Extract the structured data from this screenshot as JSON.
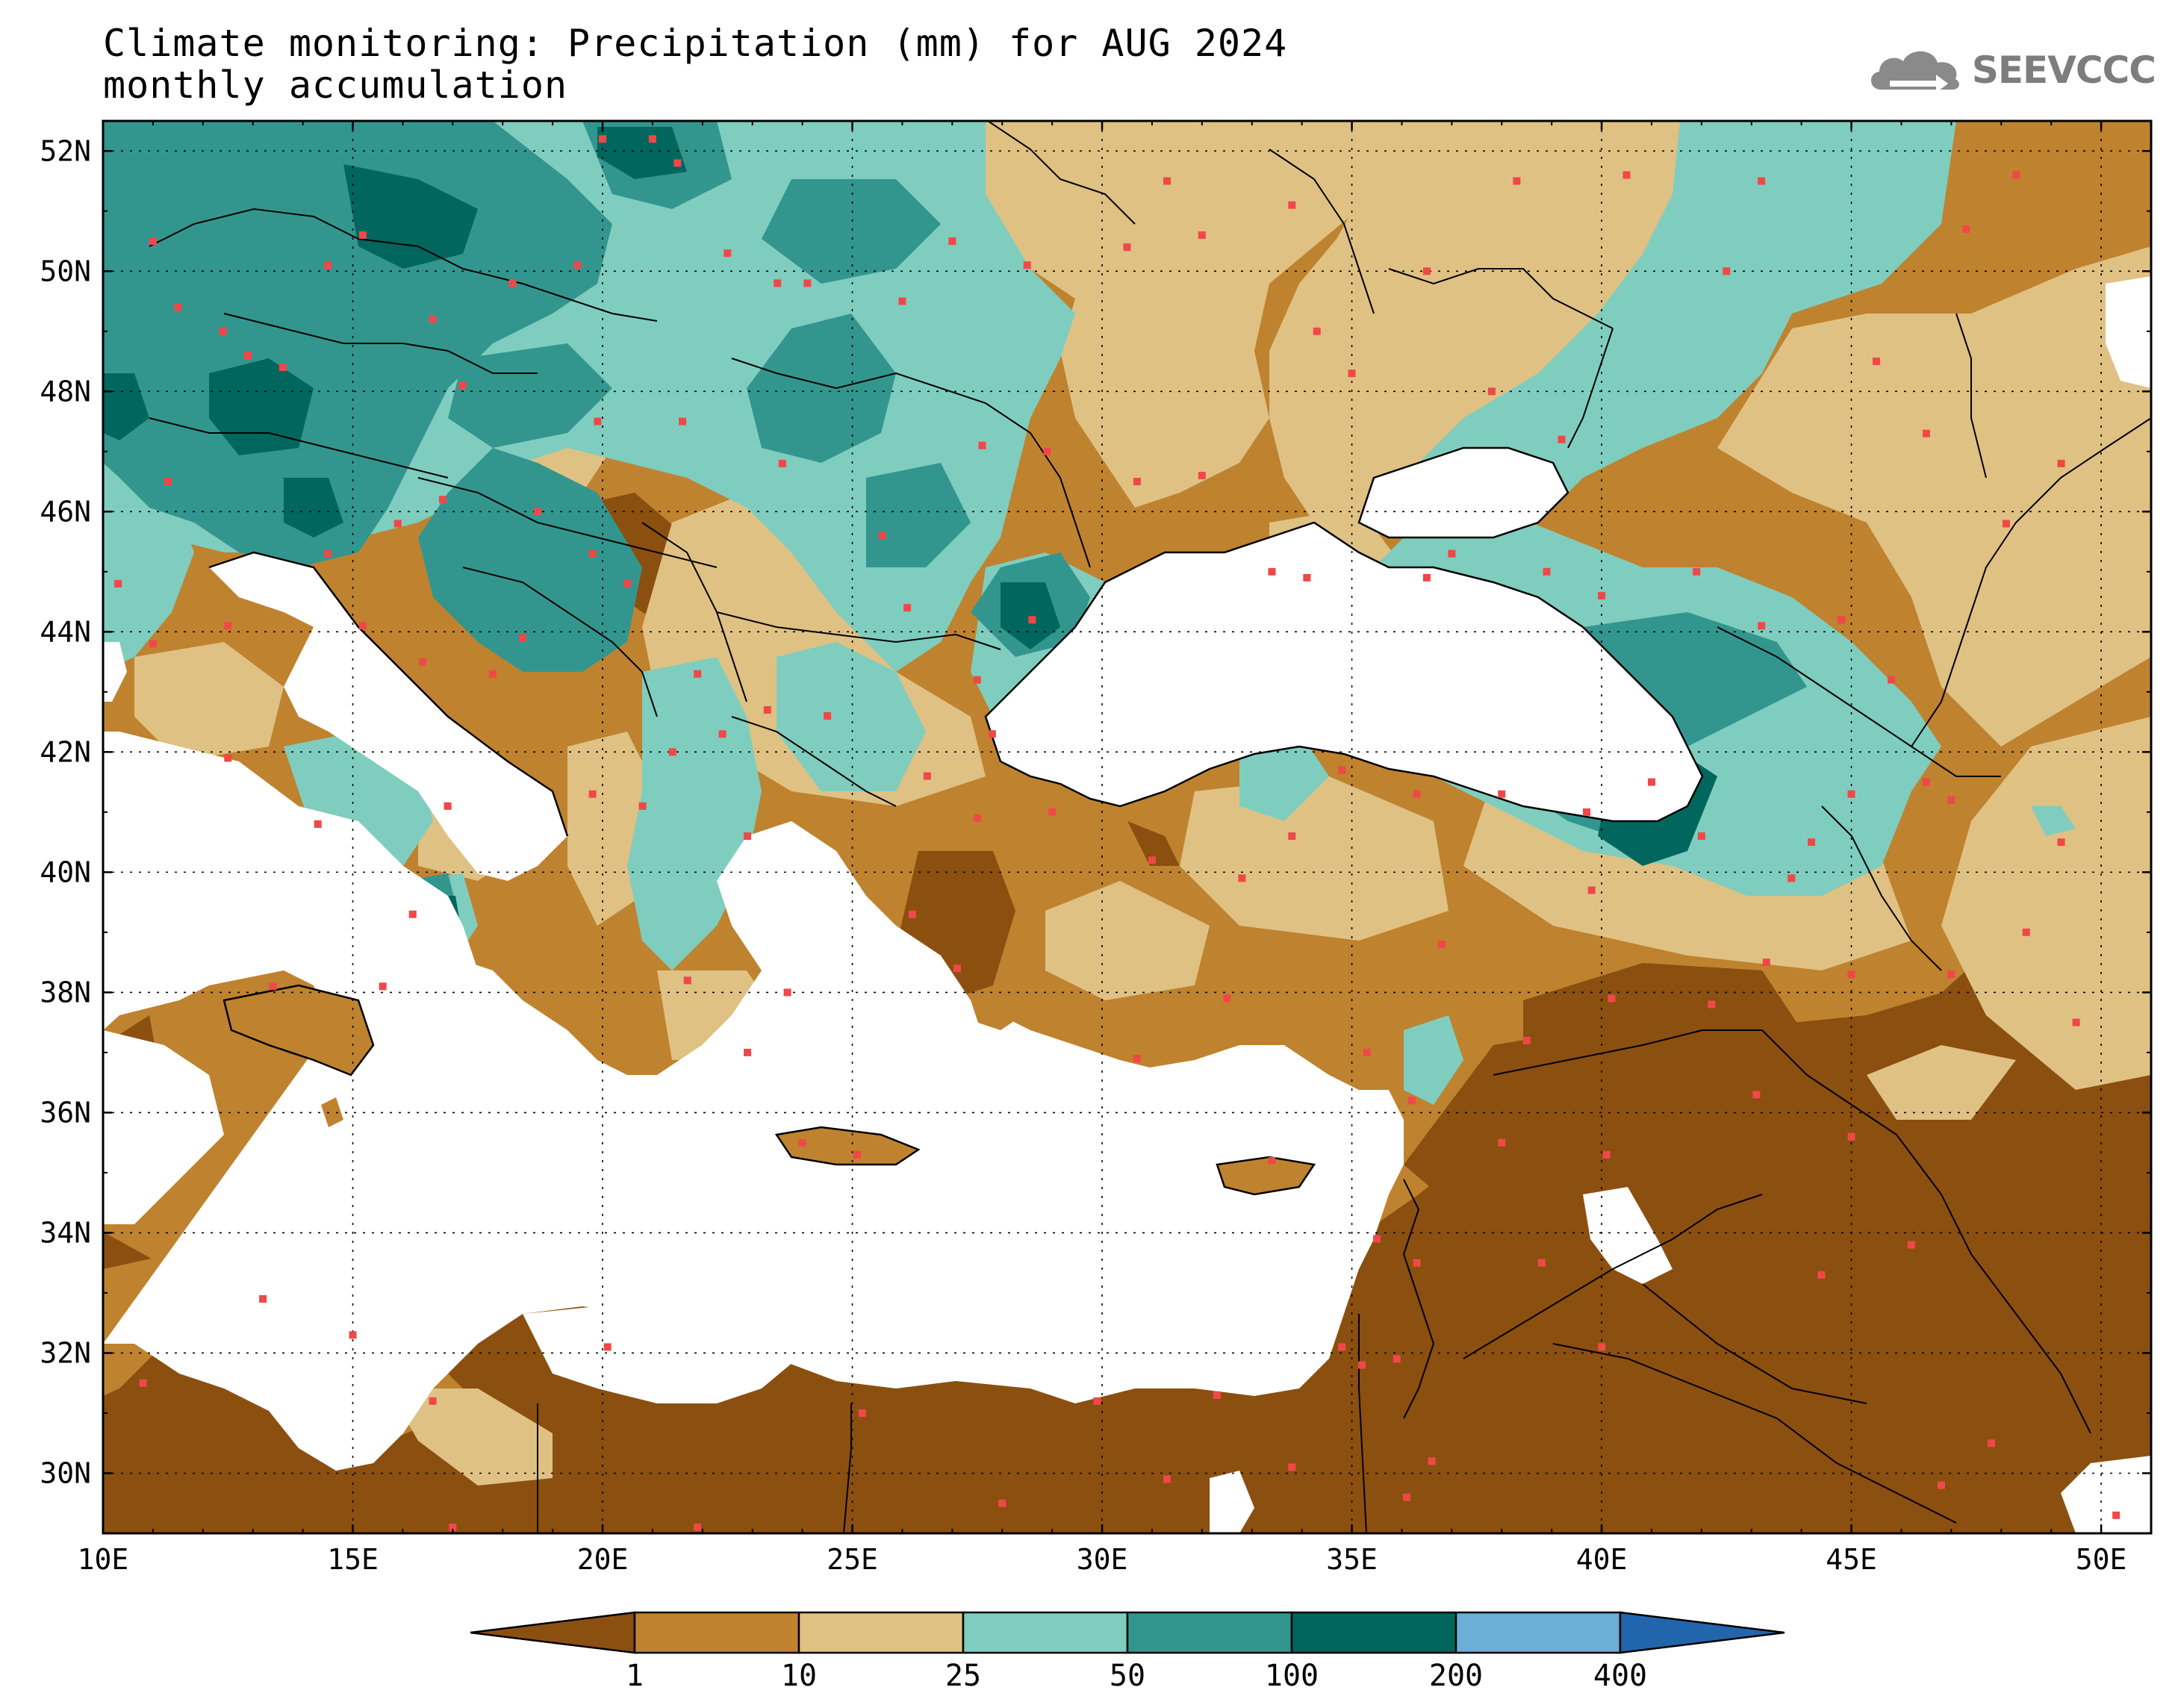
{
  "title": {
    "line1": "Climate monitoring: Precipitation (mm) for AUG 2024",
    "line2": "monthly accumulation"
  },
  "logo": {
    "text": "SEEVCCC",
    "icon": "cloud-arrow-icon",
    "color": "#7d7d7d"
  },
  "map": {
    "lon_range": [
      10,
      51
    ],
    "lat_range": [
      29,
      52.5
    ],
    "lon_ticks": [
      "10E",
      "15E",
      "20E",
      "25E",
      "30E",
      "35E",
      "40E",
      "45E",
      "50E"
    ],
    "lat_ticks": [
      "30N",
      "32N",
      "34N",
      "36N",
      "38N",
      "40N",
      "42N",
      "44N",
      "46N",
      "48N",
      "50N",
      "52N"
    ],
    "gridlines": "dotted",
    "station_marker_color": "#f04848",
    "sea_color": "#ffffff"
  },
  "colorbar": {
    "boundaries": [
      "1",
      "10",
      "25",
      "50",
      "100",
      "200",
      "400"
    ],
    "colors": [
      "#8b4f10",
      "#bf822f",
      "#dfc184",
      "#7fcdbf",
      "#33968e",
      "#00665e",
      "#6baed6",
      "#2166ac"
    ]
  }
}
